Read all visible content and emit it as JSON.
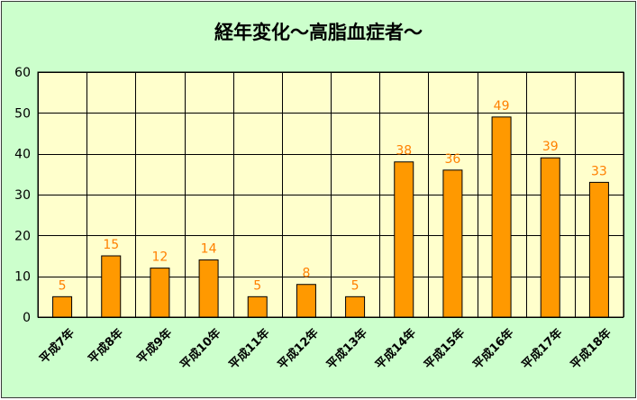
{
  "chart_data": {
    "type": "bar",
    "title": "経年変化～高脂血症者～",
    "xlabel": "",
    "ylabel": "",
    "categories": [
      "平成7年",
      "平成8年",
      "平成9年",
      "平成10年",
      "平成11年",
      "平成12年",
      "平成13年",
      "平成14年",
      "平成15年",
      "平成16年",
      "平成17年",
      "平成18年"
    ],
    "values": [
      5,
      15,
      12,
      14,
      5,
      8,
      5,
      38,
      36,
      49,
      39,
      33
    ],
    "ylim": [
      0,
      60
    ],
    "yticks": [
      0,
      10,
      20,
      30,
      40,
      50,
      60
    ],
    "grid": true,
    "legend": "none",
    "colors": {
      "background": "#ccffcc",
      "plot_area": "#ffffcc",
      "bar_fill": "#ff9900",
      "bar_stroke": "#000000",
      "data_label": "#ff8000",
      "grid": "#000000"
    }
  }
}
